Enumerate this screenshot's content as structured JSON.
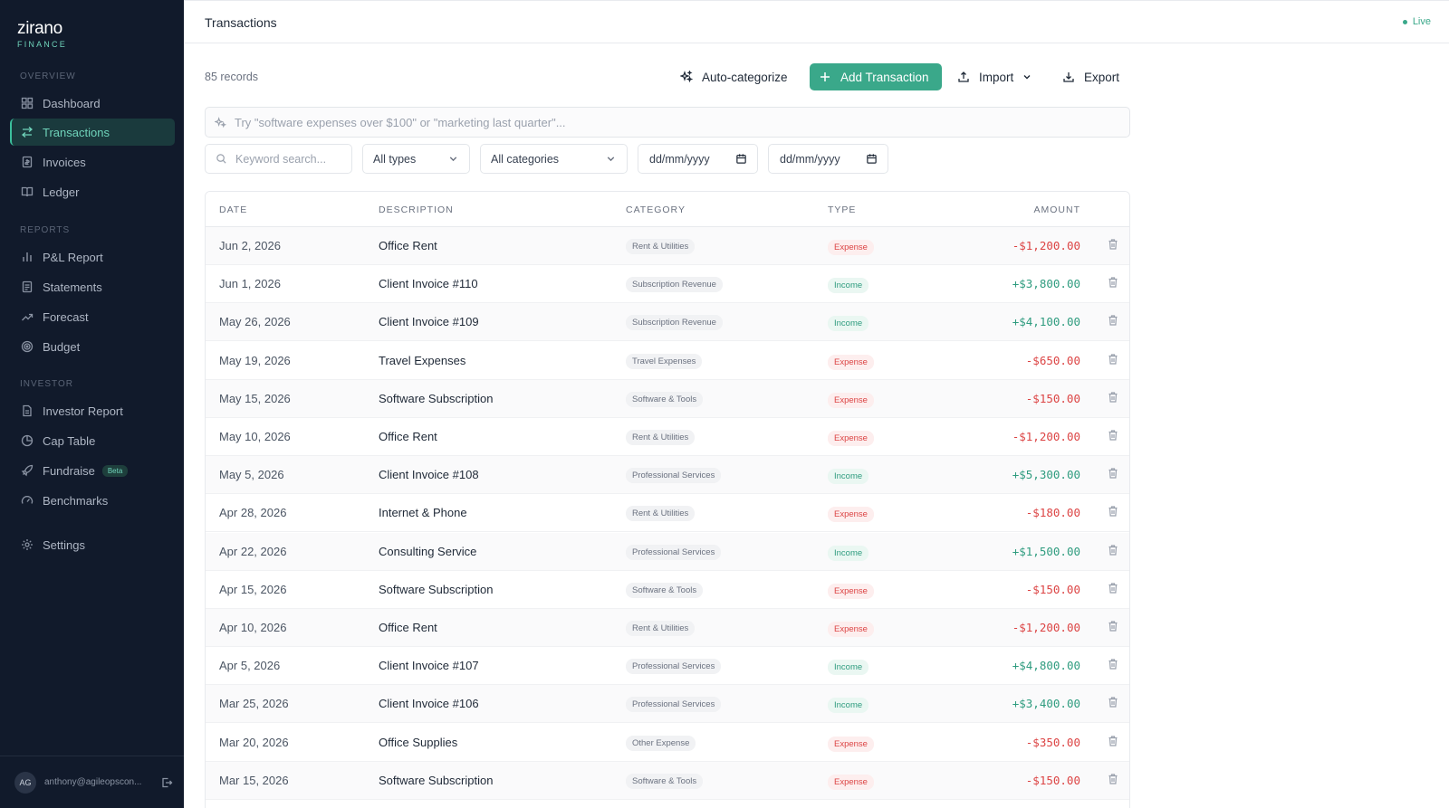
{
  "brand": {
    "name": "zirano",
    "sub": "FINANCE"
  },
  "sidebar": {
    "sections": {
      "overview": "OVERVIEW",
      "reports": "REPORTS",
      "investor": "INVESTOR"
    },
    "items": [
      {
        "label": "Dashboard",
        "icon": "dashboard-icon"
      },
      {
        "label": "Transactions",
        "icon": "transfer-icon",
        "active": true
      },
      {
        "label": "Invoices",
        "icon": "invoice-icon"
      },
      {
        "label": "Ledger",
        "icon": "book-icon"
      },
      {
        "label": "P&L Report",
        "icon": "bar-chart-icon"
      },
      {
        "label": "Statements",
        "icon": "statement-icon"
      },
      {
        "label": "Forecast",
        "icon": "trend-icon"
      },
      {
        "label": "Budget",
        "icon": "target-icon"
      },
      {
        "label": "Investor Report",
        "icon": "document-icon"
      },
      {
        "label": "Cap Table",
        "icon": "pie-icon"
      },
      {
        "label": "Fundraise",
        "icon": "rocket-icon",
        "badge": "Beta"
      },
      {
        "label": "Benchmarks",
        "icon": "gauge-icon"
      },
      {
        "label": "Settings",
        "icon": "gear-icon"
      }
    ],
    "user": {
      "initials": "AG",
      "email": "anthony@agileopscon..."
    }
  },
  "header": {
    "title": "Transactions",
    "status": "Live"
  },
  "toolbar": {
    "records": "85 records",
    "auto_categorize": "Auto-categorize",
    "add_transaction": "Add Transaction",
    "import": "Import",
    "export": "Export"
  },
  "ai_search": {
    "placeholder": "Try \"software expenses over $100\" or \"marketing last quarter\"..."
  },
  "filters": {
    "keyword_placeholder": "Keyword search...",
    "type": "All types",
    "category": "All categories",
    "date_from": "dd/mm/yyyy",
    "date_to": "dd/mm/yyyy"
  },
  "table": {
    "columns": {
      "date": "DATE",
      "description": "DESCRIPTION",
      "category": "CATEGORY",
      "type": "TYPE",
      "amount": "AMOUNT"
    },
    "rows": [
      {
        "date": "Jun 2, 2026",
        "description": "Office Rent",
        "category": "Rent & Utilities",
        "type": "Expense",
        "amount": "-$1,200.00"
      },
      {
        "date": "Jun 1, 2026",
        "description": "Client Invoice #110",
        "category": "Subscription Revenue",
        "type": "Income",
        "amount": "+$3,800.00"
      },
      {
        "date": "May 26, 2026",
        "description": "Client Invoice #109",
        "category": "Subscription Revenue",
        "type": "Income",
        "amount": "+$4,100.00"
      },
      {
        "date": "May 19, 2026",
        "description": "Travel Expenses",
        "category": "Travel Expenses",
        "type": "Expense",
        "amount": "-$650.00"
      },
      {
        "date": "May 15, 2026",
        "description": "Software Subscription",
        "category": "Software & Tools",
        "type": "Expense",
        "amount": "-$150.00"
      },
      {
        "date": "May 10, 2026",
        "description": "Office Rent",
        "category": "Rent & Utilities",
        "type": "Expense",
        "amount": "-$1,200.00"
      },
      {
        "date": "May 5, 2026",
        "description": "Client Invoice #108",
        "category": "Professional Services",
        "type": "Income",
        "amount": "+$5,300.00"
      },
      {
        "date": "Apr 28, 2026",
        "description": "Internet & Phone",
        "category": "Rent & Utilities",
        "type": "Expense",
        "amount": "-$180.00"
      },
      {
        "date": "Apr 22, 2026",
        "description": "Consulting Service",
        "category": "Professional Services",
        "type": "Income",
        "amount": "+$1,500.00"
      },
      {
        "date": "Apr 15, 2026",
        "description": "Software Subscription",
        "category": "Software & Tools",
        "type": "Expense",
        "amount": "-$150.00"
      },
      {
        "date": "Apr 10, 2026",
        "description": "Office Rent",
        "category": "Rent & Utilities",
        "type": "Expense",
        "amount": "-$1,200.00"
      },
      {
        "date": "Apr 5, 2026",
        "description": "Client Invoice #107",
        "category": "Professional Services",
        "type": "Income",
        "amount": "+$4,800.00"
      },
      {
        "date": "Mar 25, 2026",
        "description": "Client Invoice #106",
        "category": "Professional Services",
        "type": "Income",
        "amount": "+$3,400.00"
      },
      {
        "date": "Mar 20, 2026",
        "description": "Office Supplies",
        "category": "Other Expense",
        "type": "Expense",
        "amount": "-$350.00"
      },
      {
        "date": "Mar 15, 2026",
        "description": "Software Subscription",
        "category": "Software & Tools",
        "type": "Expense",
        "amount": "-$150.00"
      }
    ]
  },
  "colors": {
    "accent": "#3aa88a",
    "sidebar_bg": "#111a2b",
    "expense": "#dc4444",
    "income": "#2f9c7f"
  }
}
